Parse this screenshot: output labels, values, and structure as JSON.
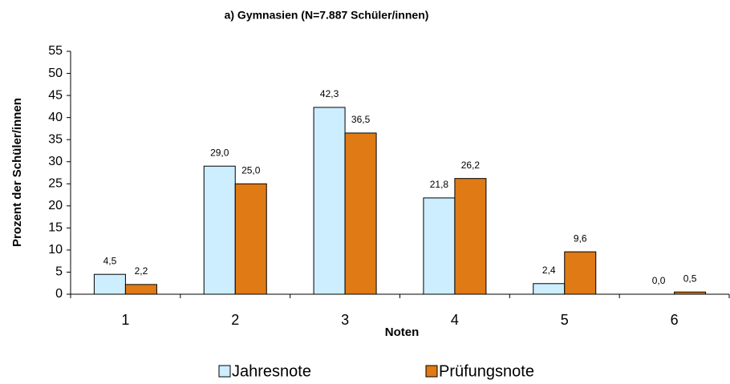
{
  "chart_data": {
    "type": "bar",
    "title": "a) Gymnasien (N=7.887 Schüler/innen)",
    "x_label": "Noten",
    "y_label": "Prozent der Schüler/innen",
    "categories": [
      "1",
      "2",
      "3",
      "4",
      "5",
      "6"
    ],
    "series": [
      {
        "name": "Jahresnote",
        "color": "#cceeff",
        "values": [
          4.5,
          29.0,
          42.3,
          21.8,
          2.4,
          0.0
        ],
        "value_labels": [
          "4,5",
          "29,0",
          "42,3",
          "21,8",
          "2,4",
          "0,0"
        ]
      },
      {
        "name": "Prüfungsnote",
        "color": "#df7a14",
        "values": [
          2.2,
          25.0,
          36.5,
          26.2,
          9.6,
          0.5
        ],
        "value_labels": [
          "2,2",
          "25,0",
          "36,5",
          "26,2",
          "9,6",
          "0,5"
        ]
      }
    ],
    "ylim": [
      0,
      55
    ],
    "yticks": [
      0,
      5,
      10,
      15,
      20,
      25,
      30,
      35,
      40,
      45,
      50,
      55
    ],
    "grid": false,
    "legend": "bottom"
  }
}
